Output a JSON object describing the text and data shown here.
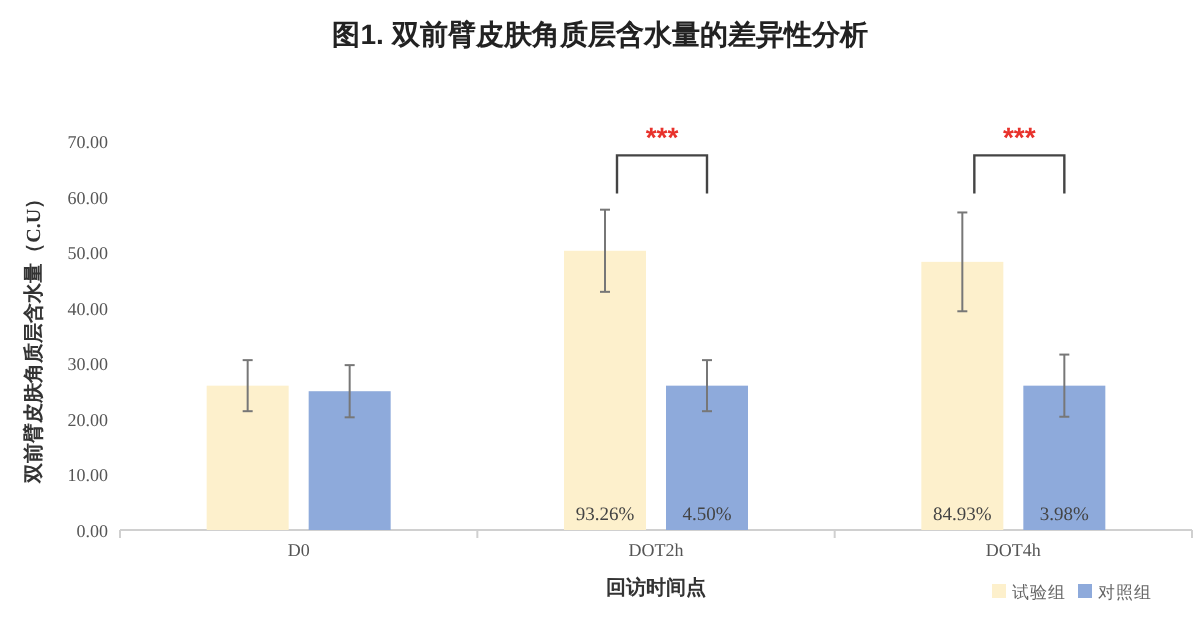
{
  "chart_data": {
    "type": "bar",
    "title": "图1. 双前臂皮肤角质层含水量的差异性分析",
    "xlabel": "回访时间点",
    "ylabel": "双前臂皮肤角质层含水量（C.U）",
    "categories": [
      "D0",
      "DOT2h",
      "DOT4h"
    ],
    "series": [
      {
        "name": "试验组",
        "color": "#fdf0cc",
        "values": [
          26.0,
          50.3,
          48.3
        ],
        "errors": [
          4.6,
          7.4,
          8.9
        ]
      },
      {
        "name": "对照组",
        "color": "#8eaadb",
        "values": [
          25.0,
          26.0,
          26.0
        ],
        "errors": [
          4.7,
          4.6,
          5.6
        ]
      }
    ],
    "ylim": [
      0,
      70
    ],
    "yticks": [
      {
        "value": 0,
        "label": "0.00"
      },
      {
        "value": 10,
        "label": "10.00"
      },
      {
        "value": 20,
        "label": "20.00"
      },
      {
        "value": 30,
        "label": "30.00"
      },
      {
        "value": 40,
        "label": "40.00"
      },
      {
        "value": 50,
        "label": "50.00"
      },
      {
        "value": 60,
        "label": "60.00"
      },
      {
        "value": 70,
        "label": "70.00"
      }
    ],
    "annotations": [
      "***",
      "***",
      "93.26%",
      "4.50%",
      "84.93%",
      "3.98%"
    ],
    "grid": false,
    "legend": "bottom right"
  }
}
